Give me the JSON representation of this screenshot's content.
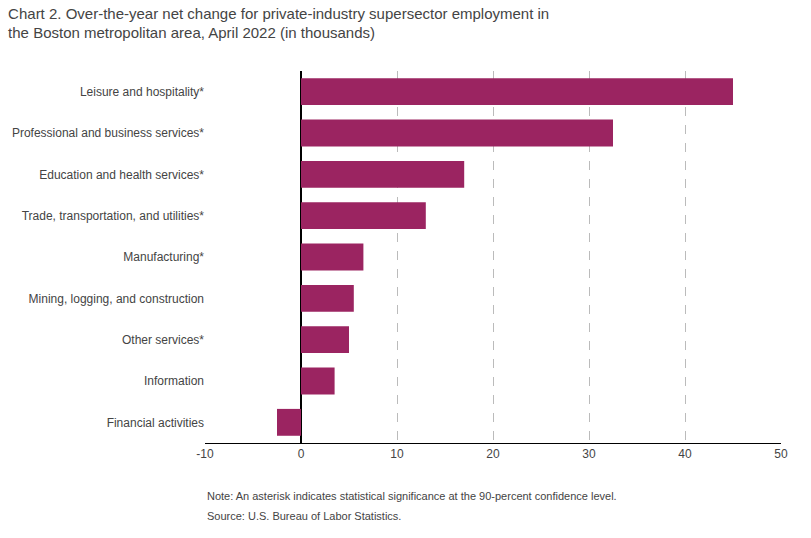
{
  "chart_data": {
    "type": "bar",
    "orientation": "horizontal",
    "title": "Chart 2. Over-the-year net change for private-industry supersector employment in\nthe Boston metropolitan area, April 2022 (in thousands)",
    "categories": [
      "Financial activities",
      "Information",
      "Other services*",
      "Mining, logging, and construction",
      "Manufacturing*",
      "Trade, transportation, and utilities*",
      "Education and health services*",
      "Professional and business services*",
      "Leisure and hospitality*"
    ],
    "values": [
      -2.5,
      3.5,
      5.0,
      5.5,
      6.5,
      13.0,
      17.0,
      32.5,
      45.0
    ],
    "color": "#9b2461",
    "xlim": [
      -10,
      50
    ],
    "xticks": [
      -10,
      0,
      10,
      20,
      30,
      40,
      50
    ],
    "grid": true,
    "annotations": [
      "Note: An asterisk indicates statistical significance at the 90-percent confidence level.",
      "Source: U.S. Bureau of Labor Statistics."
    ]
  }
}
